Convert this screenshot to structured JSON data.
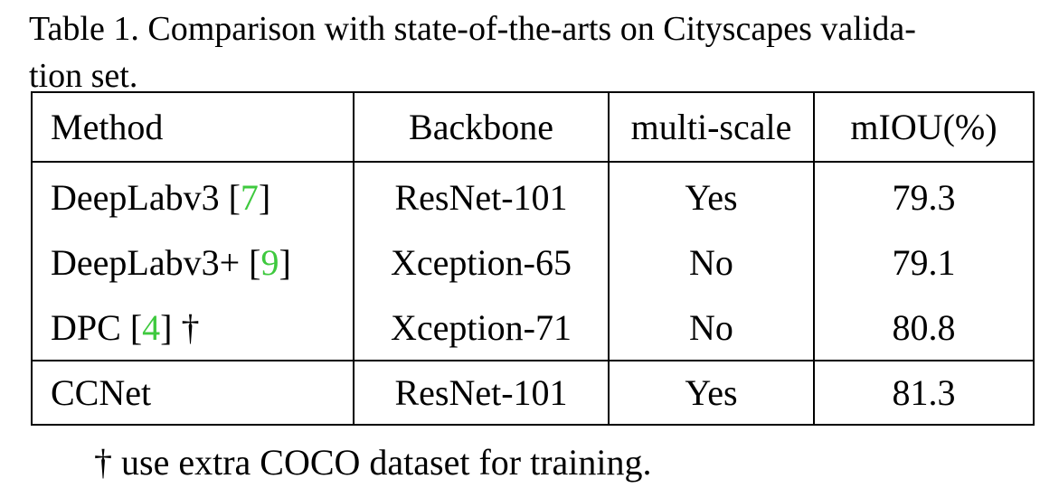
{
  "caption": {
    "line1": "Table 1. Comparison with state-of-the-arts on Cityscapes valida-",
    "line2": "tion set."
  },
  "table": {
    "headers": [
      "Method",
      "Backbone",
      "multi-scale",
      "mIOU(%)"
    ],
    "rows": [
      {
        "method": "DeepLabv3",
        "cite": "7",
        "suffix": "",
        "backbone": "ResNet-101",
        "multiscale": "Yes",
        "miou": "79.3"
      },
      {
        "method": "DeepLabv3+",
        "cite": "9",
        "suffix": "",
        "backbone": "Xception-65",
        "multiscale": "No",
        "miou": "79.1"
      },
      {
        "method": "DPC",
        "cite": "4",
        "suffix": " †",
        "backbone": "Xception-71",
        "multiscale": "No",
        "miou": "80.8"
      }
    ],
    "final_row": {
      "method": "CCNet",
      "backbone": "ResNet-101",
      "multiscale": "Yes",
      "miou": "81.3"
    }
  },
  "footnote": "† use extra COCO dataset for training.",
  "colors": {
    "citation": "#3ec93e",
    "text": "#000000",
    "background": "#ffffff"
  }
}
